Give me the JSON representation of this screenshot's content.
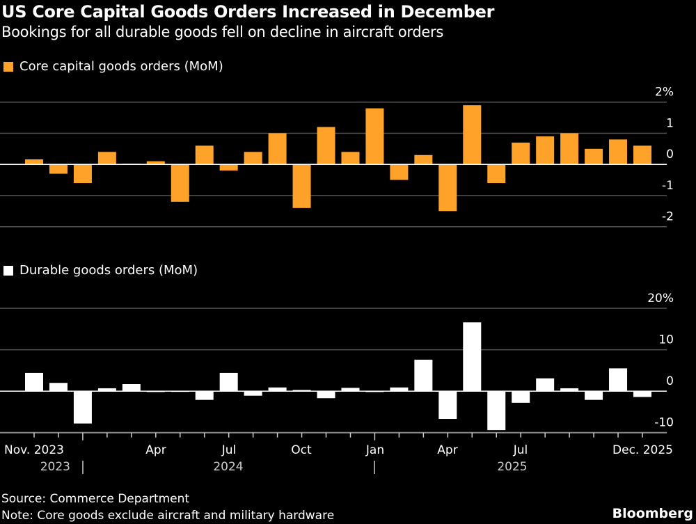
{
  "title": "US Core Capital Goods Orders Increased in December",
  "subtitle": "Bookings for all durable goods fell on decline in aircraft orders",
  "source": "Source: Commerce Department",
  "note": "Note: Core goods exclude aircraft and military hardware",
  "brand": "Bloomberg",
  "colors": {
    "core": "#ffa22a",
    "durable": "#ffffff",
    "background": "#000000",
    "grid": "#555555"
  },
  "x_tick_labels": [
    "Nov. 2023",
    "Apr",
    "Jul",
    "Oct",
    "Jan",
    "Apr",
    "Jul",
    "Dec. 2025"
  ],
  "x_year_labels": [
    "2023",
    "2024",
    "2025"
  ],
  "chart_data": [
    {
      "type": "bar",
      "series": [
        {
          "name": "Core capital goods orders (MoM)",
          "values": [
            0.16,
            -0.3,
            -0.6,
            0.4,
            0.02,
            0.1,
            -1.2,
            0.6,
            -0.2,
            0.4,
            1.0,
            -1.4,
            1.2,
            0.4,
            1.8,
            -0.5,
            0.3,
            -1.5,
            1.9,
            -0.6,
            0.7,
            0.9,
            1.0,
            0.5,
            0.8,
            0.6
          ]
        }
      ],
      "categories": [
        "2023-11",
        "2023-12",
        "2024-01",
        "2024-02",
        "2024-03",
        "2024-04",
        "2024-05",
        "2024-06",
        "2024-07",
        "2024-08",
        "2024-09",
        "2024-10",
        "2024-11",
        "2024-12",
        "2025-01",
        "2025-02",
        "2025-03",
        "2025-04",
        "2025-05",
        "2025-06",
        "2025-07",
        "2025-08",
        "2025-09",
        "2025-10",
        "2025-11",
        "2025-12"
      ],
      "ylim": [
        -2,
        2
      ],
      "y_tick_labels": [
        "2%",
        "1",
        "0",
        "-1",
        "-2"
      ],
      "y_ticks": [
        2,
        1,
        0,
        -1,
        -2
      ],
      "grid": true,
      "legend": "top-left"
    },
    {
      "type": "bar",
      "series": [
        {
          "name": "Durable goods orders (MoM)",
          "values": [
            4.4,
            2.0,
            -7.8,
            0.7,
            1.7,
            -0.2,
            0.0,
            -2.1,
            4.4,
            -1.1,
            0.9,
            0.3,
            -1.7,
            0.8,
            -0.2,
            0.9,
            7.6,
            -6.7,
            16.6,
            -9.4,
            -2.8,
            3.1,
            0.7,
            -2.1,
            5.5,
            -1.4
          ]
        }
      ],
      "categories": [
        "2023-11",
        "2023-12",
        "2024-01",
        "2024-02",
        "2024-03",
        "2024-04",
        "2024-05",
        "2024-06",
        "2024-07",
        "2024-08",
        "2024-09",
        "2024-10",
        "2024-11",
        "2024-12",
        "2025-01",
        "2025-02",
        "2025-03",
        "2025-04",
        "2025-05",
        "2025-06",
        "2025-07",
        "2025-08",
        "2025-09",
        "2025-10",
        "2025-11",
        "2025-12"
      ],
      "ylim": [
        -10,
        20
      ],
      "y_tick_labels": [
        "20%",
        "10",
        "0",
        "-10"
      ],
      "y_ticks": [
        20,
        10,
        0,
        -10
      ],
      "grid": true,
      "legend": "top-left"
    }
  ]
}
